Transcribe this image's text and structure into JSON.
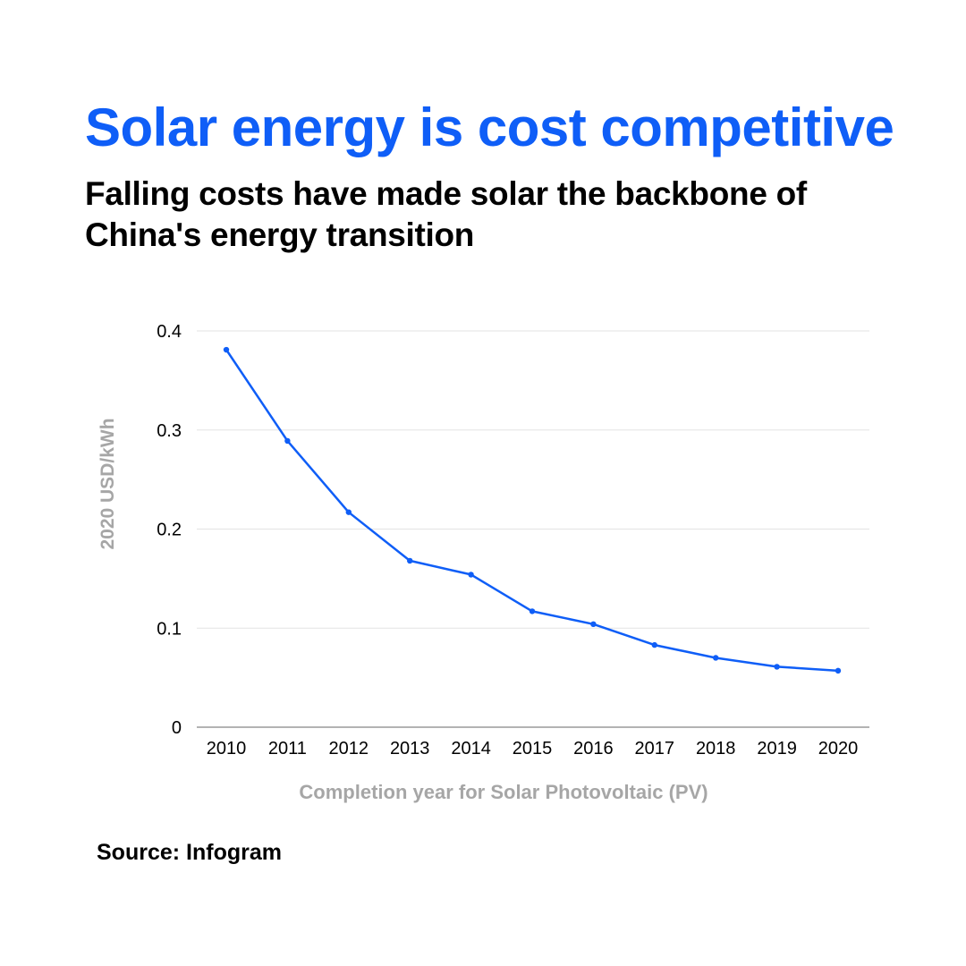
{
  "header": {
    "title": "Solar energy is cost competitive",
    "subtitle": "Falling costs have made solar the backbone of China's energy transition"
  },
  "footer": {
    "source": "Source: Infogram"
  },
  "colors": {
    "title": "#0f5ef7",
    "line": "#0f5ef7",
    "axis_label": "#a6a6a6",
    "gridline": "#e3e3e3",
    "baseline": "#9a9a9a",
    "tick_text": "#000000"
  },
  "chart_data": {
    "type": "line",
    "title": "",
    "xlabel": "Completion year for Solar Photovoltaic (PV)",
    "ylabel": "2020 USD/kWh",
    "ylim": [
      0,
      0.4
    ],
    "yticks": [
      "0",
      "0.1",
      "0.2",
      "0.3",
      "0.4"
    ],
    "grid": true,
    "legend": "none",
    "x": [
      "2010",
      "2011",
      "2012",
      "2013",
      "2014",
      "2015",
      "2016",
      "2017",
      "2018",
      "2019",
      "2020"
    ],
    "series": [
      {
        "values": [
          0.381,
          0.289,
          0.217,
          0.168,
          0.154,
          0.117,
          0.104,
          0.083,
          0.07,
          0.061,
          0.057
        ]
      }
    ]
  }
}
